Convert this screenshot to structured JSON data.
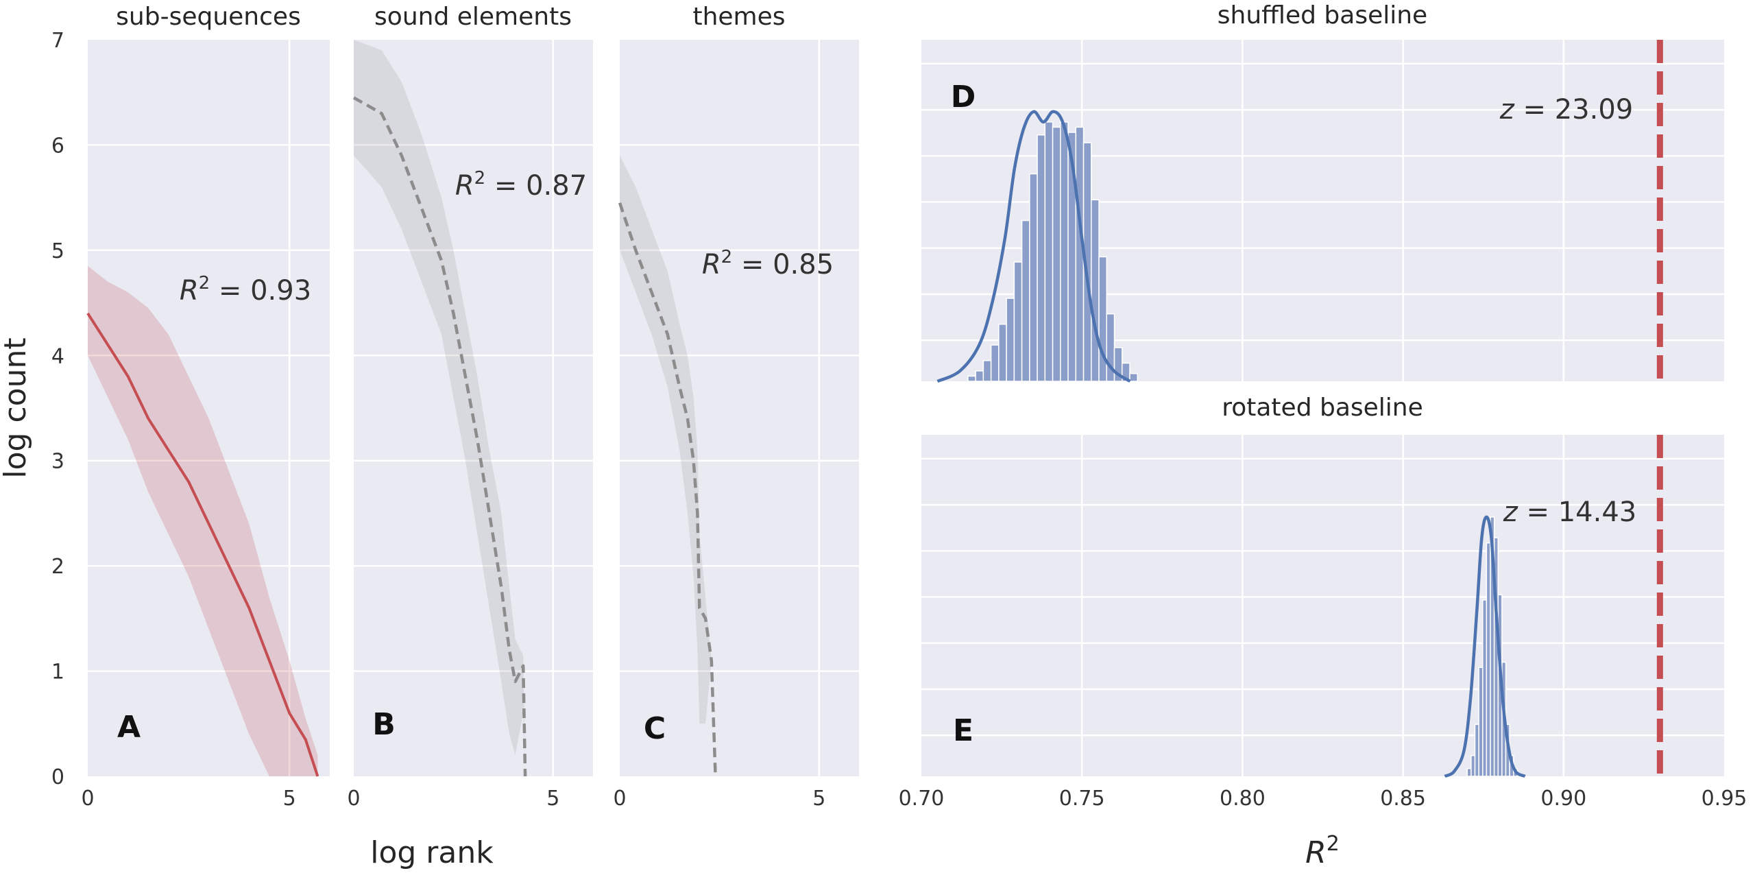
{
  "chart_data": [
    {
      "id": "A",
      "type": "line",
      "title": "sub-sequences",
      "panel_label": "A",
      "xlabel": "log rank",
      "ylabel": "log count",
      "xlim": [
        0,
        6.0
      ],
      "ylim": [
        0,
        7
      ],
      "xticks": [
        0,
        5
      ],
      "yticks": [
        0,
        1,
        2,
        3,
        4,
        5,
        6,
        7
      ],
      "grid": true,
      "color": "#c44e52",
      "dashed": false,
      "annotation": {
        "prefix": "R",
        "sup": "2",
        "value": "0.93"
      },
      "series": {
        "x": [
          0,
          0.5,
          1.0,
          1.5,
          2.0,
          2.5,
          3.0,
          3.5,
          4.0,
          4.5,
          5.0,
          5.4,
          5.7
        ],
        "y": [
          4.4,
          4.1,
          3.8,
          3.4,
          3.1,
          2.8,
          2.4,
          2.0,
          1.6,
          1.1,
          0.6,
          0.35,
          0.0
        ],
        "lo": [
          4.0,
          3.6,
          3.2,
          2.7,
          2.3,
          1.9,
          1.4,
          0.9,
          0.4,
          0.0,
          0.0,
          0.0,
          0.0
        ],
        "hi": [
          4.85,
          4.7,
          4.6,
          4.45,
          4.2,
          3.8,
          3.4,
          2.9,
          2.4,
          1.7,
          1.1,
          0.55,
          0.2
        ]
      }
    },
    {
      "id": "B",
      "type": "line",
      "title": "sound elements",
      "panel_label": "B",
      "xlim": [
        0,
        6.0
      ],
      "ylim": [
        0,
        7
      ],
      "xticks": [
        0,
        5
      ],
      "grid": true,
      "color": "#8c8c8c",
      "dashed": true,
      "annotation": {
        "prefix": "R",
        "sup": "2",
        "value": "0.87"
      },
      "series": {
        "x": [
          0,
          0.7,
          1.2,
          1.7,
          2.2,
          2.5,
          2.8,
          3.1,
          3.4,
          3.7,
          3.9,
          4.05,
          4.25,
          4.3
        ],
        "y": [
          6.45,
          6.3,
          5.9,
          5.4,
          4.9,
          4.4,
          3.8,
          3.2,
          2.5,
          1.8,
          1.2,
          0.9,
          1.05,
          0.0
        ],
        "lo": [
          5.9,
          5.6,
          5.2,
          4.7,
          4.2,
          3.6,
          3.0,
          2.3,
          1.6,
          0.9,
          0.4,
          0.2,
          0.6,
          0.0
        ],
        "hi": [
          7.0,
          6.9,
          6.6,
          6.1,
          5.5,
          5.0,
          4.4,
          3.8,
          3.1,
          2.5,
          1.8,
          1.3,
          1.15,
          0.0
        ]
      }
    },
    {
      "id": "C",
      "type": "line",
      "title": "themes",
      "panel_label": "C",
      "xlim": [
        0,
        6.0
      ],
      "ylim": [
        0,
        7
      ],
      "xticks": [
        0,
        5
      ],
      "grid": true,
      "color": "#8c8c8c",
      "dashed": true,
      "annotation": {
        "prefix": "R",
        "sup": "2",
        "value": "0.85"
      },
      "series": {
        "x": [
          0,
          0.4,
          0.8,
          1.2,
          1.5,
          1.7,
          1.85,
          1.95,
          2.0,
          2.15,
          2.3,
          2.4
        ],
        "y": [
          5.45,
          5.0,
          4.6,
          4.2,
          3.7,
          3.4,
          3.0,
          2.5,
          1.6,
          1.5,
          1.1,
          0.0
        ],
        "lo": [
          5.0,
          4.6,
          4.2,
          3.7,
          3.1,
          2.5,
          1.9,
          1.2,
          0.5,
          0.5,
          1.1,
          0.0
        ],
        "hi": [
          5.9,
          5.6,
          5.2,
          4.8,
          4.3,
          4.0,
          3.6,
          3.1,
          2.3,
          1.7,
          1.1,
          0.0
        ]
      }
    },
    {
      "id": "D",
      "type": "histogram",
      "title": "shuffled baseline",
      "panel_label": "D",
      "xlim": [
        0.7,
        0.95
      ],
      "xticks": [
        0.7,
        0.75,
        0.8,
        0.85,
        0.9,
        0.95
      ],
      "grid": true,
      "bar_color": "#8b9dc9",
      "kde_color": "#4c72b0",
      "marker_color": "#c44e52",
      "marker_x": 0.93,
      "annotation": {
        "prefix": "z",
        "value": "23.09"
      },
      "bin_start": 0.7145,
      "bin_width": 0.0024,
      "counts": [
        2,
        4,
        8,
        14,
        22,
        32,
        46,
        62,
        80,
        95,
        100,
        98,
        100,
        96,
        98,
        92,
        70,
        48,
        26,
        13,
        7,
        3
      ],
      "kde_x": [
        0.705,
        0.712,
        0.718,
        0.722,
        0.726,
        0.729,
        0.732,
        0.735,
        0.738,
        0.741,
        0.744,
        0.747,
        0.75,
        0.753,
        0.756,
        0.76,
        0.765
      ],
      "kde_y": [
        0,
        4,
        14,
        30,
        55,
        82,
        98,
        104,
        100,
        104,
        100,
        84,
        55,
        28,
        12,
        4,
        0
      ],
      "kde_peak": 108
    },
    {
      "id": "E",
      "type": "histogram",
      "title": "rotated baseline",
      "panel_label": "E",
      "xlabel": "R",
      "xlabel_sup": "2",
      "xlim": [
        0.7,
        0.95
      ],
      "xticks": [
        0.7,
        0.75,
        0.8,
        0.85,
        0.9,
        0.95
      ],
      "xtick_labels": [
        "0.70",
        "0.75",
        "0.80",
        "0.85",
        "0.90",
        "0.95"
      ],
      "grid": true,
      "bar_color": "#8b9dc9",
      "kde_color": "#4c72b0",
      "marker_color": "#c44e52",
      "marker_x": 0.93,
      "annotation": {
        "prefix": "z",
        "value": "14.43"
      },
      "bin_start": 0.87,
      "bin_width": 0.0012,
      "counts": [
        3,
        8,
        20,
        42,
        68,
        90,
        100,
        92,
        70,
        44,
        20,
        8,
        3
      ],
      "kde_x": [
        0.863,
        0.866,
        0.869,
        0.871,
        0.873,
        0.8745,
        0.876,
        0.8775,
        0.879,
        0.881,
        0.883,
        0.885,
        0.888
      ],
      "kde_y": [
        0,
        2,
        10,
        30,
        64,
        92,
        100,
        92,
        64,
        30,
        10,
        2,
        0
      ],
      "kde_peak": 108
    }
  ]
}
